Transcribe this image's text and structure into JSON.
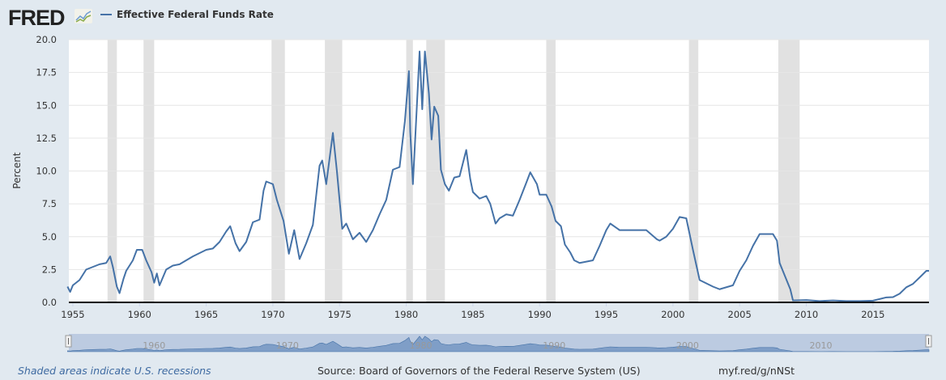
{
  "header": {
    "logo": "FRED",
    "series_label": "Effective Federal Funds Rate"
  },
  "footer": {
    "recessions_note": "Shaded areas indicate U.S. recessions",
    "source": "Source: Board of Governors of the Federal Reserve System (US)",
    "url": "myf.red/g/nNSt"
  },
  "colors": {
    "line": "#4572a7",
    "recession": "#e1e1e1",
    "navigator_fill": "#7f9ec7"
  },
  "chart_data": {
    "type": "line",
    "title": "Effective Federal Funds Rate",
    "xlabel": "",
    "ylabel": "Percent",
    "xlim": [
      1954.7,
      2019.2
    ],
    "ylim": [
      0,
      20
    ],
    "grid": true,
    "legend": "top-left",
    "yticks": [
      "0.0",
      "2.5",
      "5.0",
      "7.5",
      "10.0",
      "12.5",
      "15.0",
      "17.5",
      "20.0"
    ],
    "xticks": [
      "1955",
      "1960",
      "1965",
      "1970",
      "1975",
      "1980",
      "1985",
      "1990",
      "1995",
      "2000",
      "2005",
      "2010",
      "2015"
    ],
    "navigator_ticks": [
      "1960",
      "1970",
      "1980",
      "1990",
      "2000",
      "2010"
    ],
    "recessions": [
      [
        1957.6,
        1958.3
      ],
      [
        1960.3,
        1961.1
      ],
      [
        1969.9,
        1970.9
      ],
      [
        1973.9,
        1975.2
      ],
      [
        1980.0,
        1980.5
      ],
      [
        1981.5,
        1982.9
      ],
      [
        1990.5,
        1991.2
      ],
      [
        2001.2,
        2001.9
      ],
      [
        2007.9,
        2009.5
      ]
    ],
    "series": [
      {
        "name": "Effective Federal Funds Rate",
        "points": [
          [
            1954.6,
            1.2
          ],
          [
            1954.8,
            0.8
          ],
          [
            1955,
            1.3
          ],
          [
            1955.5,
            1.7
          ],
          [
            1956,
            2.5
          ],
          [
            1956.5,
            2.7
          ],
          [
            1957,
            2.9
          ],
          [
            1957.5,
            3.0
          ],
          [
            1957.8,
            3.5
          ],
          [
            1958.0,
            2.7
          ],
          [
            1958.3,
            1.2
          ],
          [
            1958.5,
            0.7
          ],
          [
            1958.8,
            1.8
          ],
          [
            1959,
            2.4
          ],
          [
            1959.5,
            3.2
          ],
          [
            1959.8,
            4.0
          ],
          [
            1960.2,
            4.0
          ],
          [
            1960.5,
            3.2
          ],
          [
            1960.9,
            2.3
          ],
          [
            1961.1,
            1.5
          ],
          [
            1961.3,
            2.2
          ],
          [
            1961.5,
            1.3
          ],
          [
            1962,
            2.5
          ],
          [
            1962.5,
            2.8
          ],
          [
            1963,
            2.9
          ],
          [
            1963.5,
            3.2
          ],
          [
            1964,
            3.5
          ],
          [
            1965,
            4.0
          ],
          [
            1965.5,
            4.1
          ],
          [
            1966,
            4.6
          ],
          [
            1966.5,
            5.4
          ],
          [
            1966.8,
            5.8
          ],
          [
            1967.2,
            4.5
          ],
          [
            1967.5,
            3.9
          ],
          [
            1968,
            4.6
          ],
          [
            1968.5,
            6.1
          ],
          [
            1969,
            6.3
          ],
          [
            1969.3,
            8.5
          ],
          [
            1969.5,
            9.2
          ],
          [
            1970,
            9.0
          ],
          [
            1970.3,
            7.8
          ],
          [
            1970.8,
            6.2
          ],
          [
            1971.2,
            3.7
          ],
          [
            1971.6,
            5.5
          ],
          [
            1972,
            3.3
          ],
          [
            1972.5,
            4.5
          ],
          [
            1973,
            5.9
          ],
          [
            1973.5,
            10.4
          ],
          [
            1973.7,
            10.8
          ],
          [
            1974,
            9.0
          ],
          [
            1974.5,
            12.9
          ],
          [
            1974.8,
            10.0
          ],
          [
            1975.2,
            5.6
          ],
          [
            1975.5,
            6.0
          ],
          [
            1976,
            4.8
          ],
          [
            1976.5,
            5.3
          ],
          [
            1977,
            4.6
          ],
          [
            1977.5,
            5.5
          ],
          [
            1978,
            6.7
          ],
          [
            1978.5,
            7.8
          ],
          [
            1979,
            10.1
          ],
          [
            1979.5,
            10.3
          ],
          [
            1979.9,
            13.8
          ],
          [
            1980.2,
            17.6
          ],
          [
            1980.3,
            13.0
          ],
          [
            1980.5,
            9.0
          ],
          [
            1980.8,
            15.0
          ],
          [
            1981.0,
            19.1
          ],
          [
            1981.2,
            14.7
          ],
          [
            1981.4,
            19.1
          ],
          [
            1981.7,
            15.9
          ],
          [
            1981.9,
            12.4
          ],
          [
            1982.1,
            14.9
          ],
          [
            1982.4,
            14.2
          ],
          [
            1982.6,
            10.1
          ],
          [
            1982.9,
            9.0
          ],
          [
            1983.2,
            8.5
          ],
          [
            1983.6,
            9.5
          ],
          [
            1984,
            9.6
          ],
          [
            1984.5,
            11.6
          ],
          [
            1984.8,
            9.4
          ],
          [
            1985,
            8.4
          ],
          [
            1985.5,
            7.9
          ],
          [
            1986,
            8.1
          ],
          [
            1986.3,
            7.5
          ],
          [
            1986.7,
            6.0
          ],
          [
            1987,
            6.4
          ],
          [
            1987.5,
            6.7
          ],
          [
            1988,
            6.6
          ],
          [
            1988.5,
            7.8
          ],
          [
            1989,
            9.1
          ],
          [
            1989.3,
            9.9
          ],
          [
            1989.8,
            9.0
          ],
          [
            1990,
            8.2
          ],
          [
            1990.5,
            8.2
          ],
          [
            1990.9,
            7.3
          ],
          [
            1991.2,
            6.2
          ],
          [
            1991.6,
            5.8
          ],
          [
            1991.9,
            4.4
          ],
          [
            1992.3,
            3.8
          ],
          [
            1992.6,
            3.2
          ],
          [
            1993,
            3.0
          ],
          [
            1994,
            3.2
          ],
          [
            1994.5,
            4.3
          ],
          [
            1995,
            5.5
          ],
          [
            1995.3,
            6.0
          ],
          [
            1996,
            5.5
          ],
          [
            1997,
            5.5
          ],
          [
            1998,
            5.5
          ],
          [
            1998.8,
            4.8
          ],
          [
            1999,
            4.7
          ],
          [
            1999.5,
            5.0
          ],
          [
            2000,
            5.6
          ],
          [
            2000.5,
            6.5
          ],
          [
            2001,
            6.4
          ],
          [
            2001.5,
            4.0
          ],
          [
            2002,
            1.7
          ],
          [
            2003,
            1.2
          ],
          [
            2003.5,
            1.0
          ],
          [
            2004.5,
            1.3
          ],
          [
            2005,
            2.4
          ],
          [
            2005.5,
            3.2
          ],
          [
            2006,
            4.3
          ],
          [
            2006.5,
            5.2
          ],
          [
            2007.5,
            5.2
          ],
          [
            2007.8,
            4.7
          ],
          [
            2008,
            3.0
          ],
          [
            2008.4,
            2.0
          ],
          [
            2008.8,
            1.0
          ],
          [
            2009,
            0.15
          ],
          [
            2010,
            0.18
          ],
          [
            2011,
            0.1
          ],
          [
            2012,
            0.15
          ],
          [
            2013,
            0.1
          ],
          [
            2014,
            0.1
          ],
          [
            2015,
            0.13
          ],
          [
            2016,
            0.38
          ],
          [
            2016.5,
            0.4
          ],
          [
            2017,
            0.66
          ],
          [
            2017.5,
            1.15
          ],
          [
            2018,
            1.41
          ],
          [
            2018.5,
            1.9
          ],
          [
            2019,
            2.4
          ],
          [
            2019.2,
            2.4
          ]
        ]
      }
    ]
  }
}
